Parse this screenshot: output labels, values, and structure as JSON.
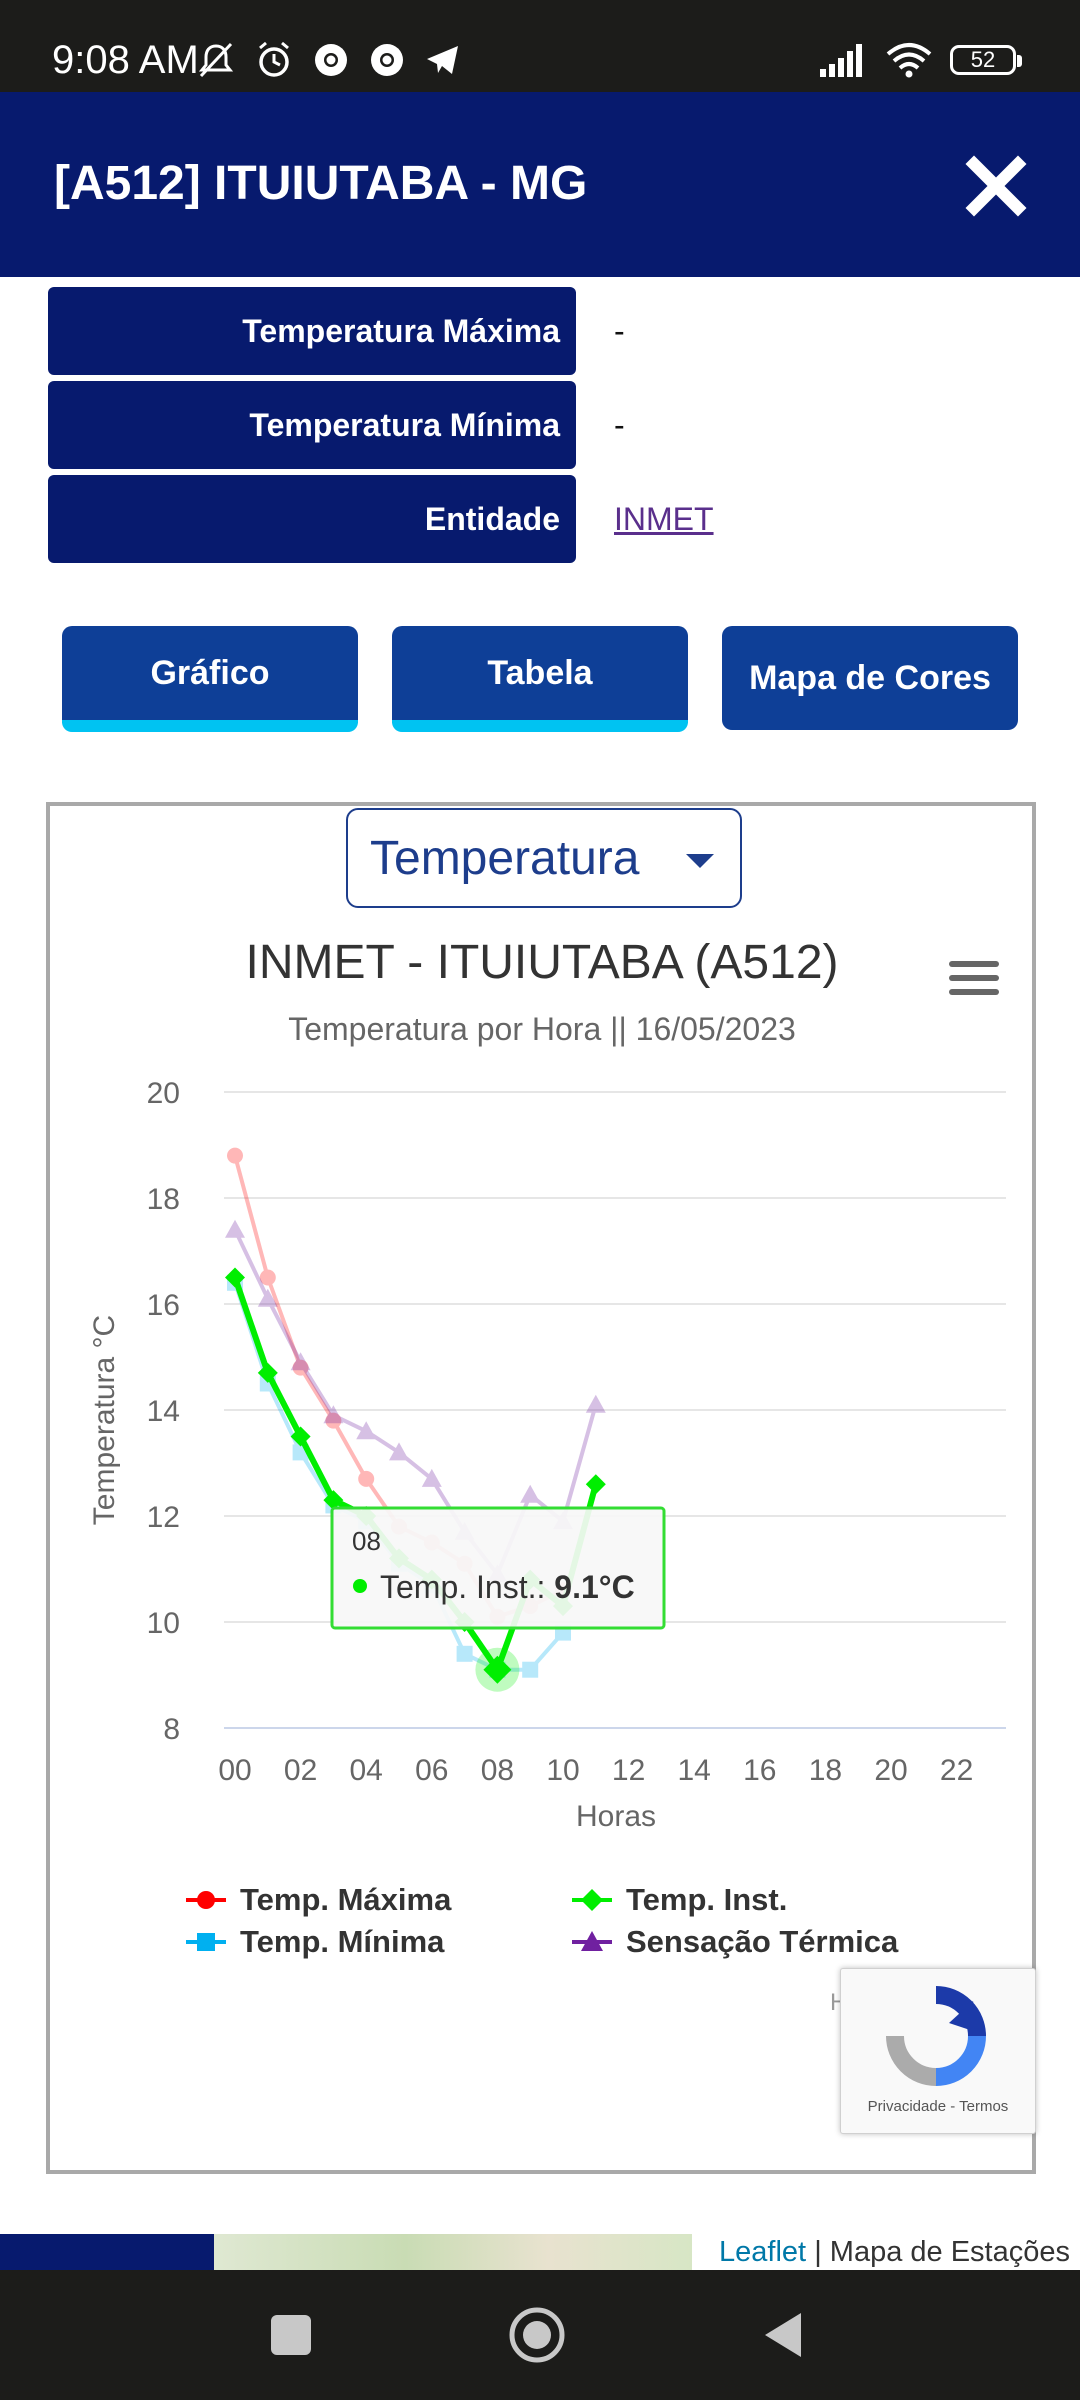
{
  "status_bar": {
    "time": "9:08 AM",
    "battery": "52",
    "icons_left": [
      "mute-icon",
      "alarm-icon",
      "chrome-icon",
      "chrome-icon",
      "telegram-icon"
    ],
    "icons_right": [
      "signal-icon",
      "wifi-icon",
      "battery-icon"
    ]
  },
  "header": {
    "title": "[A512] ITUIUTABA - MG",
    "close_icon": "close-icon"
  },
  "info_rows": [
    {
      "label": "Temperatura Máxima",
      "value": "-"
    },
    {
      "label": "Temperatura Mínima",
      "value": "-"
    },
    {
      "label": "Entidade",
      "value": "INMET"
    }
  ],
  "tabs": [
    {
      "label": "Gráfico"
    },
    {
      "label": "Tabela"
    },
    {
      "label": "Mapa de Cores"
    }
  ],
  "variable_select": {
    "value": "Temperatura"
  },
  "chart_menu_icon": "hamburger-menu-icon",
  "chart_data": {
    "type": "line",
    "title": "INMET - ITUIUTABA (A512)",
    "subtitle": "Temperatura por Hora || 16/05/2023",
    "xlabel": "Horas",
    "ylabel": "Temperatura °C",
    "x_ticks": [
      "00",
      "02",
      "04",
      "06",
      "08",
      "10",
      "12",
      "14",
      "16",
      "18",
      "20",
      "22"
    ],
    "y_ticks": [
      8,
      10,
      12,
      14,
      16,
      18,
      20
    ],
    "xlim": [
      0,
      23
    ],
    "ylim": [
      8,
      20
    ],
    "grid": true,
    "legend_position": "bottom",
    "series": [
      {
        "name": "Temp. Máxima",
        "color": "#ff0000",
        "marker": "circle",
        "x": [
          0,
          1,
          2,
          3,
          4,
          5,
          6,
          7,
          8,
          9,
          10
        ],
        "y": [
          18.8,
          16.5,
          14.8,
          13.8,
          12.7,
          11.8,
          11.5,
          11.1,
          10.1,
          10.3,
          10.6
        ]
      },
      {
        "name": "Temp. Mínima",
        "color": "#00b0f0",
        "marker": "square",
        "x": [
          0,
          1,
          2,
          3,
          4,
          5,
          6,
          7,
          8,
          9,
          10
        ],
        "y": [
          16.4,
          14.5,
          13.2,
          12.2,
          11.9,
          11.1,
          10.7,
          9.4,
          9.1,
          9.1,
          9.8
        ]
      },
      {
        "name": "Temp. Inst.",
        "color": "#00ee00",
        "marker": "diamond",
        "x": [
          0,
          1,
          2,
          3,
          4,
          5,
          6,
          7,
          8,
          9,
          10,
          11
        ],
        "y": [
          16.5,
          14.7,
          13.5,
          12.3,
          12.0,
          11.2,
          10.8,
          10.0,
          9.1,
          10.8,
          10.3,
          12.6
        ]
      },
      {
        "name": "Sensação Térmica",
        "color": "#7020a0",
        "marker": "triangle",
        "x": [
          0,
          1,
          2,
          3,
          4,
          5,
          6,
          7,
          8,
          9,
          10,
          11
        ],
        "y": [
          17.4,
          16.1,
          14.9,
          13.9,
          13.6,
          13.2,
          12.7,
          11.7,
          10.9,
          12.4,
          11.9,
          14.1
        ]
      }
    ],
    "tooltip": {
      "hour": "08",
      "series": "Temp. Inst.",
      "value_label": "Temp. Inst.:",
      "value": "9.1°C"
    }
  },
  "credits_partial": "H",
  "recaptcha": {
    "privacy": "Privacidade",
    "terms": "Termos"
  },
  "map_attribution": {
    "leaflet": "Leaflet",
    "separator": "|",
    "text": "Mapa de Estações"
  },
  "nav_bar": {
    "icons": [
      "recents-square-icon",
      "home-circle-icon",
      "back-triangle-icon"
    ]
  }
}
